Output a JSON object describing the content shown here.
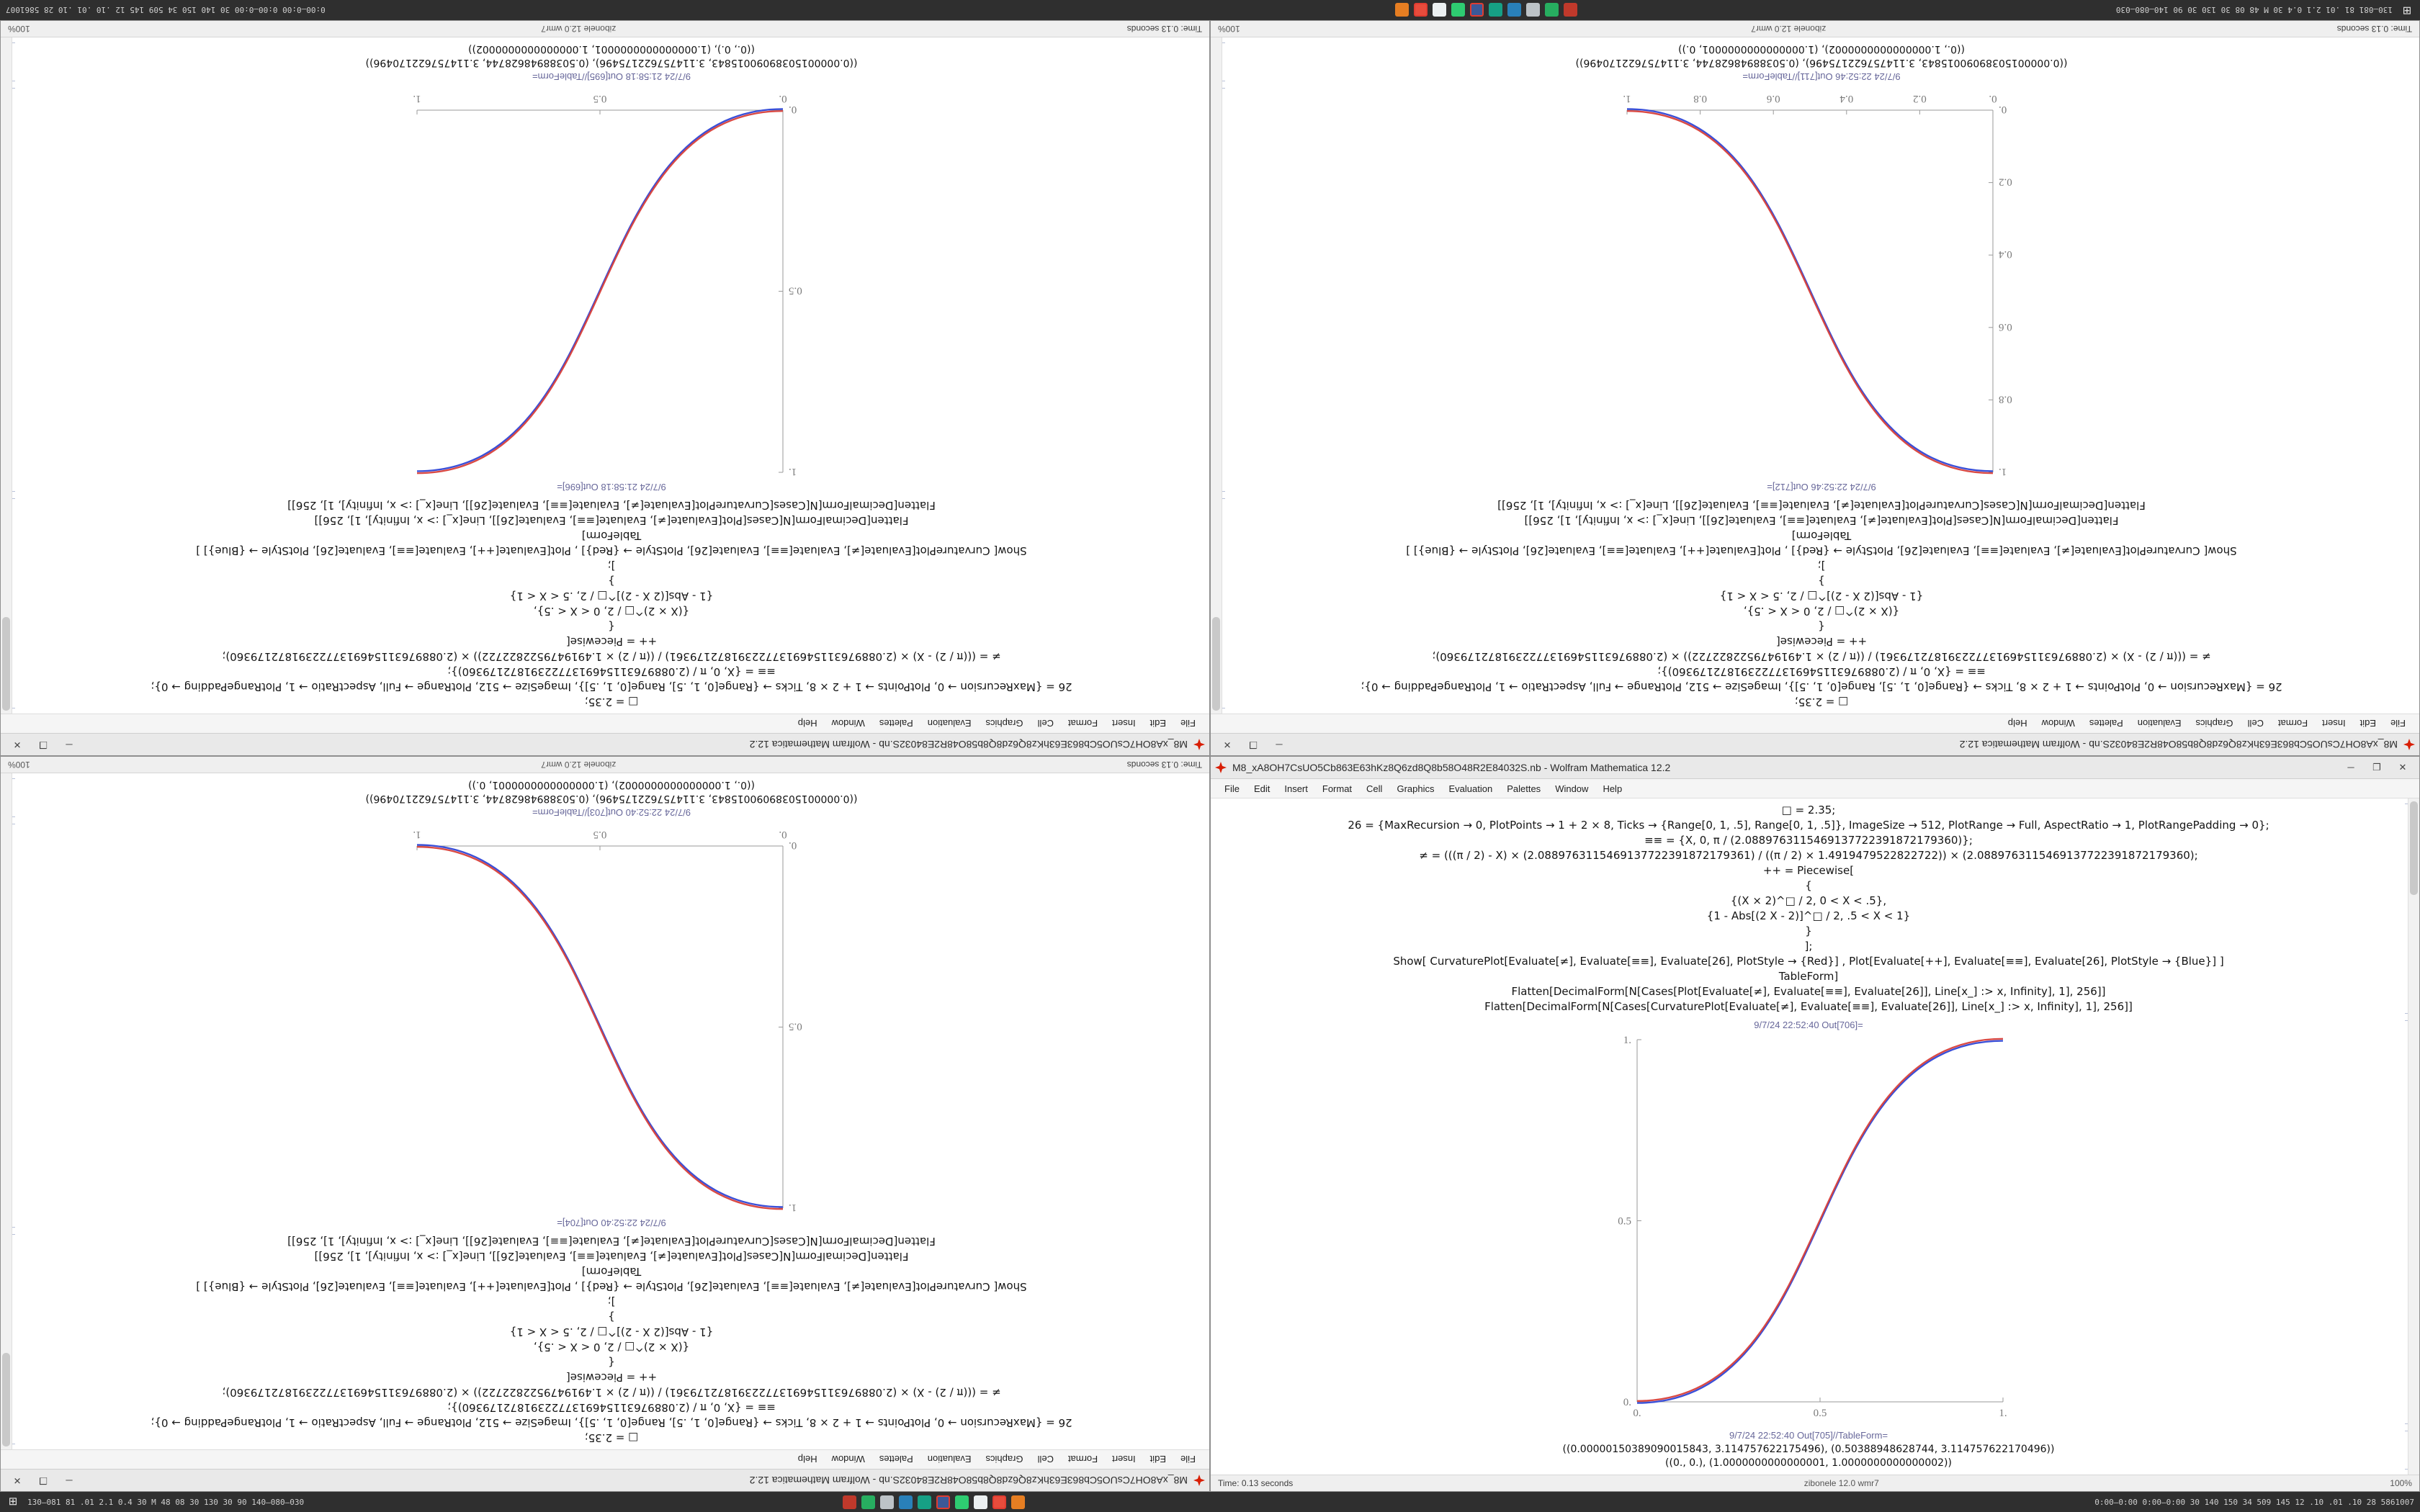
{
  "app": {
    "window_buttons": {
      "minimize": "─",
      "maximize": "❐",
      "close": "✕"
    }
  },
  "menu": [
    "File",
    "Edit",
    "Insert",
    "Format",
    "Cell",
    "Graphics",
    "Evaluation",
    "Palettes",
    "Window",
    "Help"
  ],
  "shared_code": [
    "□ = 2.35;",
    "26 = {MaxRecursion → 0, PlotPoints → 1 + 2 × 8, Ticks → {Range[0, 1, .5], Range[0, 1, .5]}, ImageSize → 512, PlotRange → Full, AspectRatio → 1, PlotRangePadding → 0};",
    "≡≡ = {X, 0, π / (2.0889763115469137722391872179360)};",
    "≠ = (((π / 2) - X) × (2.0889763115469137722391872179361) / ((π / 2) × 1.4919479522822722)) × (2.0889763115469137722391872179360);",
    "++ = Piecewise[",
    "{",
    "{(X × 2)^□ / 2, 0 < X < .5},",
    "{1 - Abs[(2 X - 2)]^□ / 2, .5 < X < 1}",
    "}",
    "];",
    "Show[ CurvaturePlot[Evaluate[≠], Evaluate[≡≡], Evaluate[26], PlotStyle → {Red}] , Plot[Evaluate[++], Evaluate[≡≡], Evaluate[26], PlotStyle → {Blue}] ]",
    "TableForm]",
    "Flatten[DecimalForm[N[Cases[Plot[Evaluate[≠], Evaluate[≡≡], Evaluate[26]], Line[x_] :> x, Infinity], 1], 256]]",
    "Flatten[DecimalForm[N[Cases[CurvaturePlot[Evaluate[≠], Evaluate[≡≡], Evaluate[26]], Line[x_] :> x, Infinity], 1], 256]]"
  ],
  "taskbar": {
    "start": "⊞",
    "left_text": "130–081 81  .01 2.1 0.4 30  M 48 08 30 130 30 90  140–080–030",
    "icons": [
      {
        "name": "taskbar-app-red-icon",
        "color": "#c0392b"
      },
      {
        "name": "taskbar-app-green-icon",
        "color": "#27ae60"
      },
      {
        "name": "taskbar-app-gray-icon",
        "color": "#bdc3c7"
      },
      {
        "name": "taskbar-app-blue-icon",
        "color": "#2980b9"
      },
      {
        "name": "taskbar-app-teal-icon",
        "color": "#16a085"
      },
      {
        "name": "taskbar-app-navy-icon",
        "color": "#3b5998",
        "border": true
      },
      {
        "name": "taskbar-app-green2-icon",
        "color": "#2ecc71"
      },
      {
        "name": "taskbar-app-white-icon",
        "color": "#ecf0f1"
      },
      {
        "name": "taskbar-app-red2-icon",
        "color": "#e74c3c",
        "border": true
      },
      {
        "name": "taskbar-app-orange-icon",
        "color": "#e67e22"
      }
    ],
    "tray_text": "0:00–0:00  0:00–0:00  30  140  150  34  509  145  12  .10  .01  .10  28  5861007"
  },
  "windows": {
    "tl": {
      "title": "M8_xA8OH7CsUO5Cb863E63hKz8Q6zd8Q8b58O48R2E84032S.nb - Wolfram Mathematica 12.2",
      "out_plot_label": "9/7/24 21:58:18 Out[696]=",
      "out_table_label": "9/7/24 21:58:18 Out[695]//TableForm=",
      "table_rows": [
        "((0.00000150389090015843, 3.114757622175496), (0.50388948628744, 3.114757622170496))",
        "((0., 0.), (1.0000000000000001, 1.0000000000000002))"
      ],
      "status_time": "Time: 0.13 seconds",
      "status_kernel": "zibonele 12.0 wmr7",
      "status_zoom": "100%",
      "chart": {
        "type": "line",
        "direction": "increasing",
        "xlim": [
          0,
          1
        ],
        "ylim": [
          0,
          1
        ],
        "ticks": [
          "0.",
          "0.5",
          "1."
        ],
        "curves": [
          "Red",
          "Blue"
        ],
        "colors": [
          "#d8403a",
          "#3a4fd8"
        ],
        "axis_color": "#9a9a9a"
      }
    },
    "tr": {
      "title": "M8_xA8OH7CsUO5Cb863E63hKz8Q6zd8Q8b58O48R2E84032S.nb - Wolfram Mathematica 12.2",
      "out_plot_label": "9/7/24 22:52:46 Out[712]=",
      "out_table_label": "9/7/24 22:52:46 Out[711]//TableForm=",
      "table_rows": [
        "((0.00000150389090015843, 3.114757622175496), (0.50388948628744, 3.114757622170496))",
        "((0., 1.0000000000000002), (1.0000000000000001, 0.))"
      ],
      "status_time": "Time: 0.13 seconds",
      "status_kernel": "zibonele 12.0 wmr7",
      "status_zoom": "100%",
      "chart": {
        "type": "line",
        "direction": "decreasing",
        "xlim": [
          0,
          1
        ],
        "ylim": [
          0,
          1
        ],
        "ticks": [
          "0.",
          "0.2",
          "0.4",
          "0.6",
          "0.8",
          "1."
        ],
        "curves": [
          "Red",
          "Blue"
        ],
        "colors": [
          "#d8403a",
          "#3a4fd8"
        ],
        "axis_color": "#9a9a9a"
      }
    },
    "bl": {
      "title": "M8_xA8OH7CsUO5Cb863E63hKz8Q6zd8Q8b58O48R2E84032S.nb - Wolfram Mathematica 12.2",
      "out_plot_label": "9/7/24 22:52:40 Out[704]=",
      "out_table_label": "9/7/24 22:52:40 Out[703]//TableForm=",
      "table_rows": [
        "((0.00000150389090015843, 3.114757622175496), (0.50388948628744, 3.114757622170496))",
        "((0., 1.0000000000000002), (1.0000000000000001, 0.))"
      ],
      "status_time": "Time: 0.13 seconds",
      "status_kernel": "zibonele 12.0 wmr7",
      "status_zoom": "100%",
      "chart": {
        "type": "line",
        "direction": "decreasing",
        "xlim": [
          0,
          1
        ],
        "ylim": [
          0,
          1
        ],
        "ticks": [
          "0.",
          "0.5",
          "1."
        ],
        "curves": [
          "Red",
          "Blue"
        ],
        "colors": [
          "#d8403a",
          "#3a4fd8"
        ],
        "axis_color": "#9a9a9a"
      }
    },
    "br": {
      "title": "M8_xA8OH7CsUO5Cb863E63hKz8Q6zd8Q8b58O48R2E84032S.nb - Wolfram Mathematica 12.2",
      "out_plot_label": "9/7/24 22:52:40 Out[706]=",
      "out_table_label": "9/7/24 22:52:40 Out[705]//TableForm=",
      "table_rows": [
        "((0.00000150389090015843, 3.114757622175496), (0.50388948628744, 3.114757622170496))",
        "((0., 0.), (1.0000000000000001, 1.0000000000000002))"
      ],
      "status_time": "Time: 0.13 seconds",
      "status_kernel": "zibonele 12.0 wmr7",
      "status_zoom": "100%",
      "chart": {
        "type": "line",
        "direction": "increasing",
        "xlim": [
          0,
          1
        ],
        "ylim": [
          0,
          1
        ],
        "ticks": [
          "0.",
          "0.5",
          "1."
        ],
        "curves": [
          "Red",
          "Blue"
        ],
        "colors": [
          "#d8403a",
          "#3a4fd8"
        ],
        "axis_color": "#9a9a9a"
      }
    }
  }
}
